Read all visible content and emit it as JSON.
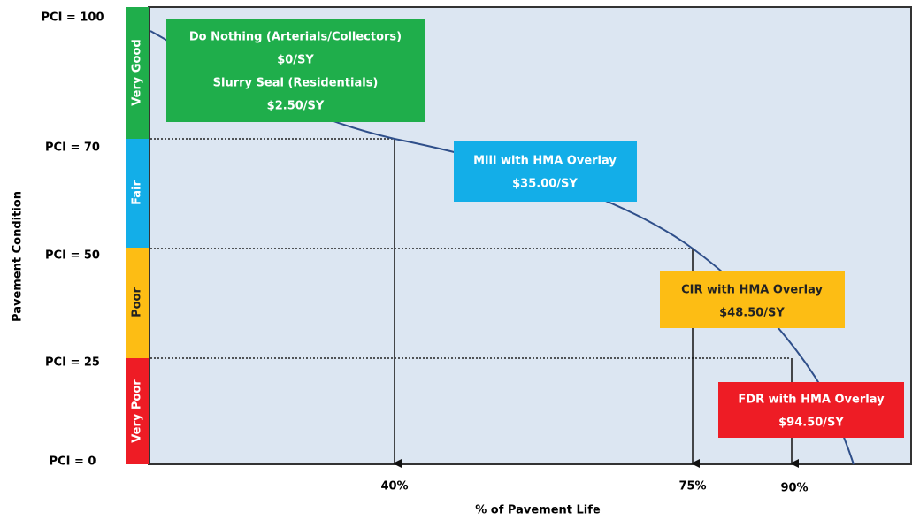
{
  "y_axis_title": "Pavement Condition",
  "x_axis_title": "% of Pavement Life",
  "pci_levels": [
    "PCI = 100",
    "PCI = 70",
    "PCI = 50",
    "PCI = 25",
    "PCI = 0"
  ],
  "bands": [
    "Very Good",
    "Fair",
    "Poor",
    "Very Poor"
  ],
  "x_ticks": [
    "40%",
    "75%",
    "90%"
  ],
  "boxes": [
    {
      "lines": [
        "Do Nothing (Arterials/Collectors)",
        "$0/SY",
        "Slurry Seal (Residentials)",
        "$2.50/SY"
      ]
    },
    {
      "lines": [
        "Mill with HMA Overlay",
        "$35.00/SY"
      ]
    },
    {
      "lines": [
        "CIR with HMA Overlay",
        "$48.50/SY"
      ]
    },
    {
      "lines": [
        "FDR with HMA Overlay",
        "$94.50/SY"
      ]
    }
  ]
}
